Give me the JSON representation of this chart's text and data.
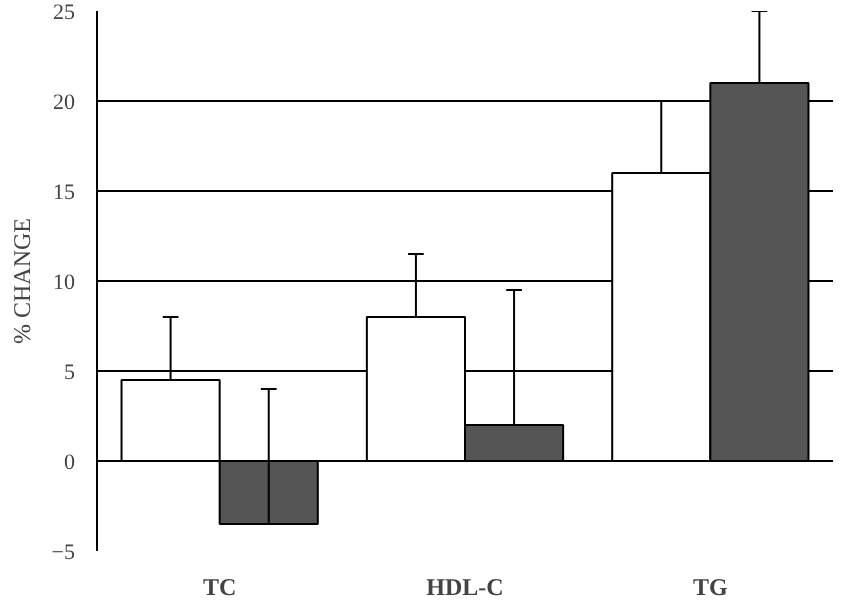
{
  "chart_data": {
    "type": "bar",
    "ylabel": "% CHANGE",
    "categories": [
      "TC",
      "HDL-C",
      "TG"
    ],
    "series": [
      {
        "color": "#ffffff",
        "values": [
          4.5,
          8,
          16
        ],
        "errors": [
          [
            4.5,
            8
          ],
          [
            8,
            11.5
          ],
          [
            16,
            20
          ]
        ]
      },
      {
        "color": "#555555",
        "values": [
          -3.5,
          2,
          21
        ],
        "errors": [
          [
            -3.5,
            4
          ],
          [
            2,
            9.5
          ],
          [
            21,
            25
          ]
        ]
      }
    ],
    "ylim": [
      -5,
      25
    ],
    "yticks": [
      -5,
      0,
      5,
      10,
      15,
      20,
      25
    ],
    "grid": "y"
  }
}
